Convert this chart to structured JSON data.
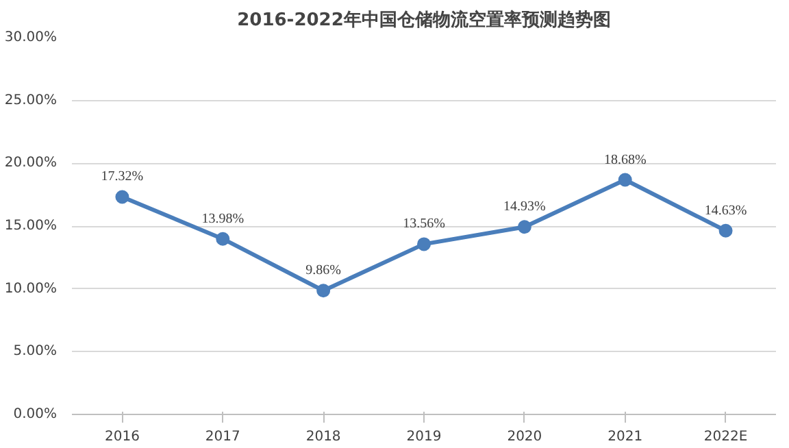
{
  "chart_data": {
    "type": "line",
    "title": "2016-2022年中国仓储物流空置率预测趋势图",
    "categories": [
      "2016",
      "2017",
      "2018",
      "2019",
      "2020",
      "2021",
      "2022E"
    ],
    "series": [
      {
        "color": "#4a7ebb",
        "values": [
          17.32,
          13.98,
          9.86,
          13.56,
          14.93,
          18.68,
          14.63
        ]
      }
    ],
    "value_labels": [
      "17.32%",
      "13.98%",
      "9.86%",
      "13.56%",
      "14.93%",
      "18.68%",
      "14.63%"
    ],
    "ylim": [
      0,
      30
    ],
    "yticks": [
      {
        "value": 0,
        "label": "0.00%"
      },
      {
        "value": 5,
        "label": "5.00%"
      },
      {
        "value": 10,
        "label": "10.00%"
      },
      {
        "value": 15,
        "label": "15.00%"
      },
      {
        "value": 20,
        "label": "20.00%"
      },
      {
        "value": 25,
        "label": "25.00%"
      },
      {
        "value": 30,
        "label": "30.00%"
      }
    ],
    "grid": "y",
    "marker": "circle",
    "line_style": "solid"
  }
}
